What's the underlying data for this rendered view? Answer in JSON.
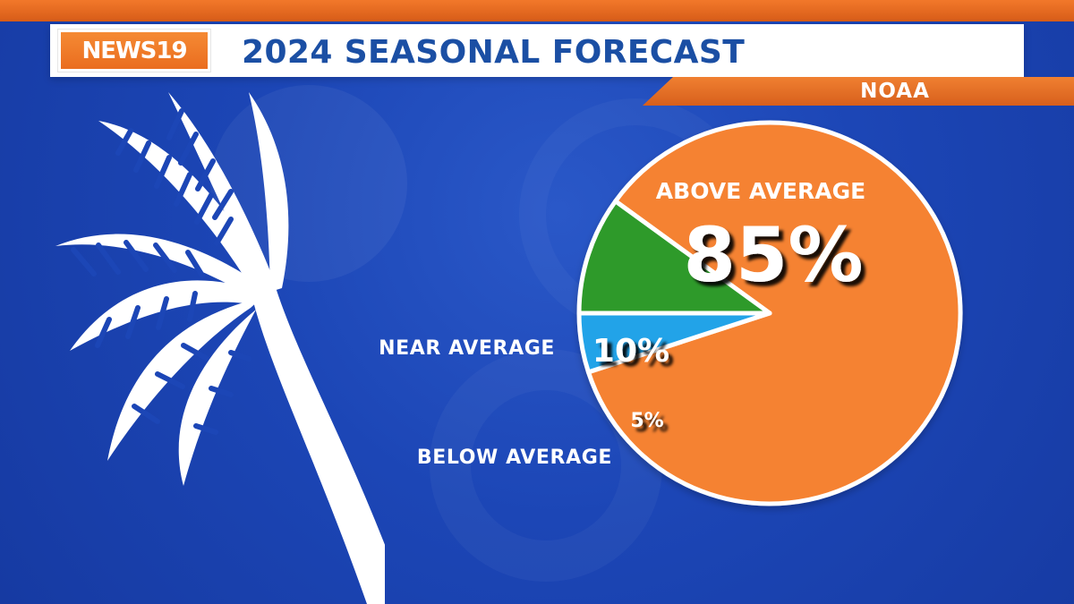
{
  "header": {
    "logo": "NEWS19",
    "title": "2024 SEASONAL FORECAST",
    "source": "NOAA"
  },
  "colors": {
    "background": "#1c46b6",
    "banner_orange": "#ef7a2c",
    "title_blue": "#1b4fa4",
    "above": "#f58230",
    "near": "#2d9a2b",
    "below": "#22a3e8",
    "white": "#ffffff"
  },
  "icons": {
    "logo": "news19-logo",
    "decor": "palm-tree-icon"
  },
  "chart_data": {
    "type": "pie",
    "title": "",
    "labels": [
      "ABOVE AVERAGE",
      "NEAR AVERAGE",
      "BELOW AVERAGE"
    ],
    "values": [
      85,
      10,
      5
    ],
    "value_labels": [
      "85%",
      "10%",
      "5%"
    ],
    "colors": [
      "#f58230",
      "#2d9a2b",
      "#22a3e8"
    ]
  }
}
